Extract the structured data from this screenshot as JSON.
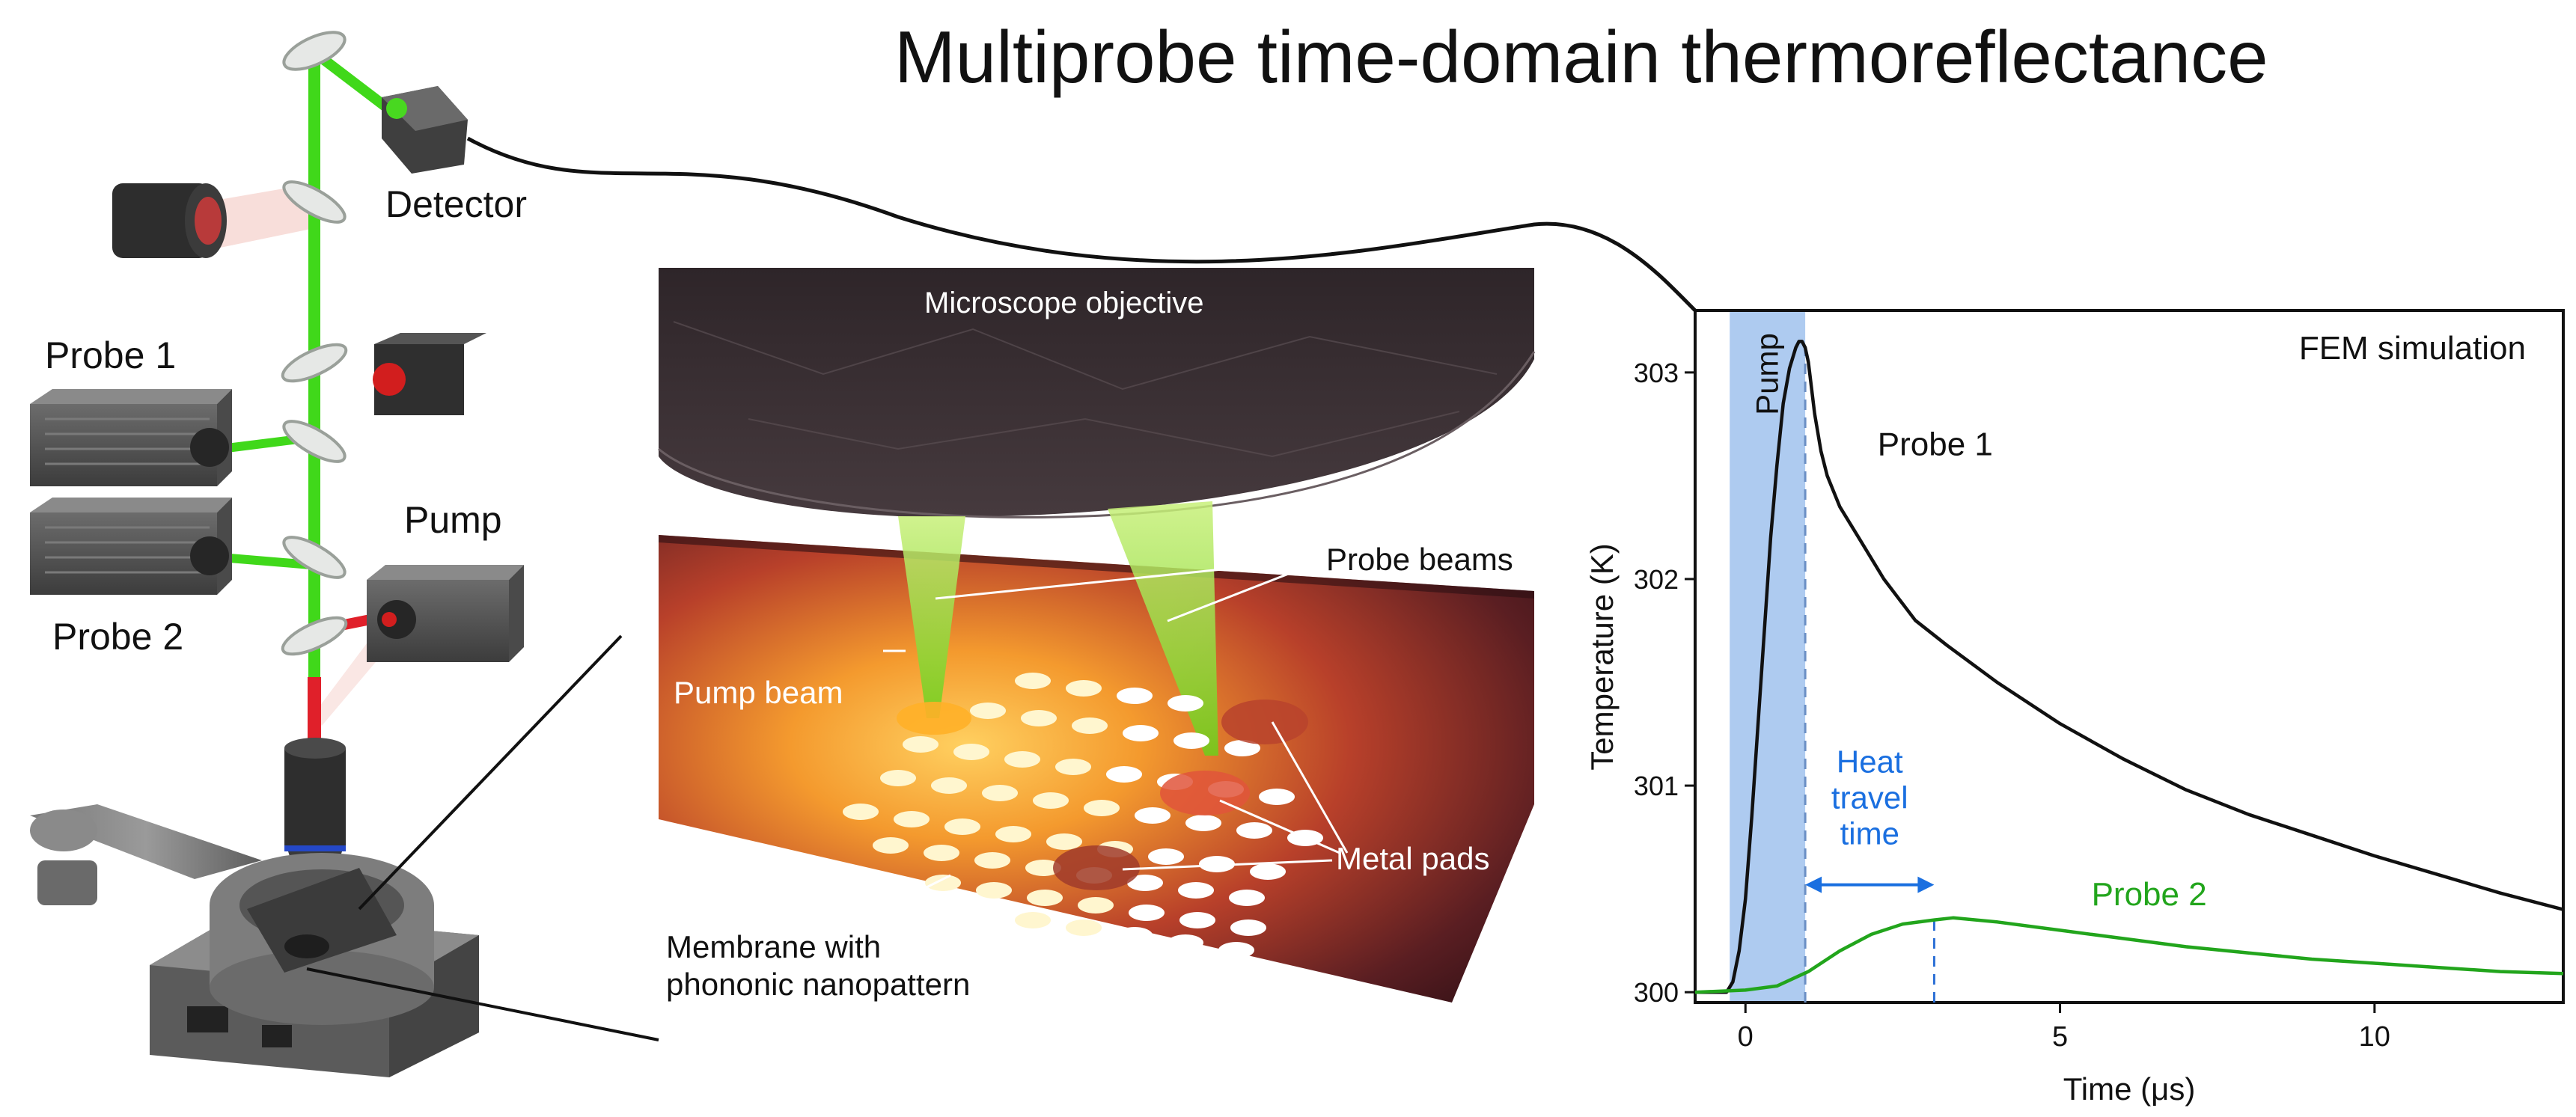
{
  "title": "Multiprobe time-domain thermoreflectance",
  "setup": {
    "labels": {
      "detector": "Detector",
      "probe1": "Probe 1",
      "probe2": "Probe 2",
      "pump": "Pump"
    }
  },
  "zoom": {
    "labels": {
      "objective": "Microscope objective",
      "probe_beams": "Probe beams",
      "pump_beam": "Pump beam",
      "metal_pads": "Metal pads",
      "membrane_line1": "Membrane with",
      "membrane_line2": "phononic nanopattern"
    }
  },
  "chart_data": {
    "type": "line",
    "annotation_title": "FEM simulation",
    "xlabel": "Time (μs)",
    "ylabel": "Temperature (K)",
    "xlim": [
      -0.8,
      13
    ],
    "ylim": [
      299.95,
      303.3
    ],
    "xticks": [
      0,
      5,
      10
    ],
    "xtick_labels": [
      "0",
      "5",
      "10"
    ],
    "yticks": [
      300,
      301,
      302,
      303
    ],
    "ytick_labels": [
      "300",
      "301",
      "302",
      "303"
    ],
    "pump_window": {
      "label": "Pump",
      "x": [
        -0.25,
        0.95
      ],
      "color": "#aecbf0"
    },
    "series": [
      {
        "name": "Probe 1",
        "color": "#111111",
        "x": [
          -0.8,
          -0.3,
          -0.2,
          -0.1,
          0,
          0.1,
          0.2,
          0.3,
          0.4,
          0.5,
          0.6,
          0.7,
          0.8,
          0.85,
          0.9,
          0.95,
          1.0,
          1.1,
          1.2,
          1.3,
          1.5,
          1.8,
          2.2,
          2.7,
          3.2,
          4,
          5,
          6,
          7,
          8,
          9,
          10,
          11,
          12,
          13
        ],
        "y": [
          300.0,
          300.0,
          300.05,
          300.2,
          300.45,
          300.85,
          301.3,
          301.75,
          302.2,
          302.55,
          302.85,
          303.02,
          303.12,
          303.15,
          303.15,
          303.12,
          303.05,
          302.8,
          302.62,
          302.5,
          302.35,
          302.2,
          302.0,
          301.8,
          301.68,
          301.5,
          301.3,
          301.13,
          300.98,
          300.86,
          300.76,
          300.66,
          300.57,
          300.48,
          300.4
        ]
      },
      {
        "name": "Probe 2",
        "color": "#22a51c",
        "x": [
          -0.8,
          0,
          0.5,
          1.0,
          1.5,
          2.0,
          2.5,
          3.0,
          3.3,
          4,
          5,
          6,
          7,
          8,
          9,
          10,
          11,
          12,
          13
        ],
        "y": [
          300.0,
          300.01,
          300.03,
          300.1,
          300.2,
          300.28,
          300.33,
          300.35,
          300.36,
          300.34,
          300.3,
          300.26,
          300.22,
          300.19,
          300.16,
          300.14,
          300.12,
          300.1,
          300.09
        ]
      }
    ],
    "series_labels": [
      {
        "text": "Probe 1",
        "x": 2.1,
        "y": 302.6,
        "color": "#111111"
      },
      {
        "text": "Probe 2",
        "x": 5.5,
        "y": 300.42,
        "color": "#22a51c"
      }
    ],
    "markers": [
      {
        "x": 0.95,
        "y0": 299.95,
        "y1": 303.15,
        "color": "#6b8fc4"
      },
      {
        "x": 3.0,
        "y0": 299.95,
        "y1": 300.35,
        "color": "#2b6fd6"
      }
    ],
    "travel_arrow": {
      "x0": 0.95,
      "x1": 3.0,
      "y": 300.52,
      "color": "#1a6fe0",
      "label_lines": [
        "Heat",
        "travel",
        "time"
      ]
    }
  }
}
